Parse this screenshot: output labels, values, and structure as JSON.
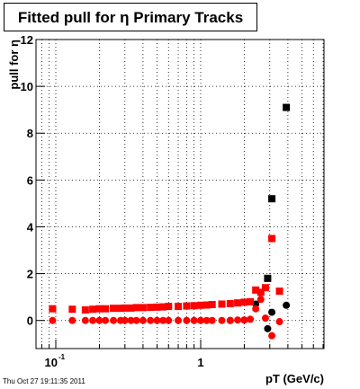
{
  "chart_data": {
    "type": "scatter",
    "title": "Fitted pull for η  Primary Tracks",
    "x_label": "pT (GeV/c)",
    "y_label": "pull for η",
    "timestamp": "Thu Oct 27 19:11:35 2011",
    "x_log": true,
    "grid": true,
    "xlim": [
      0.073,
      7.1
    ],
    "ylim": [
      -1.2,
      12
    ],
    "xticks": [
      {
        "value": 0.1,
        "label": "10",
        "exponent": "-1"
      },
      1
    ],
    "xminor_ticks": [
      0.08,
      0.09,
      0.2,
      0.3,
      0.4,
      0.5,
      0.6,
      0.7,
      0.8,
      0.9,
      2,
      3,
      4,
      5,
      6,
      7
    ],
    "yticks": [
      0,
      2,
      4,
      6,
      8,
      10,
      12
    ],
    "series": [
      {
        "color": "#000000",
        "marker": "circle",
        "x": [
          1.6,
          2.0,
          2.4,
          2.9,
          3.1,
          3.9
        ],
        "values": [
          0,
          0.02,
          0.7,
          -0.35,
          0.35,
          0.65
        ]
      },
      {
        "color": "#000000",
        "marker": "square",
        "x": [
          2.9,
          3.1,
          3.9
        ],
        "values": [
          1.8,
          5.2,
          9.1
        ]
      },
      {
        "color": "#ff0000",
        "marker": "circle",
        "x": [
          0.095,
          0.13,
          0.16,
          0.18,
          0.2,
          0.22,
          0.25,
          0.28,
          0.3,
          0.33,
          0.36,
          0.4,
          0.45,
          0.5,
          0.55,
          0.6,
          0.7,
          0.8,
          0.9,
          1.0,
          1.1,
          1.2,
          1.4,
          1.6,
          1.8,
          2.0,
          2.2,
          2.4,
          2.6,
          2.8,
          3.1,
          3.5
        ],
        "values": [
          0,
          0,
          0,
          0,
          0,
          0,
          0,
          0,
          0,
          0,
          0,
          0,
          0,
          0,
          0,
          0,
          0,
          0,
          0,
          0,
          0,
          0,
          0,
          0,
          0.02,
          0.02,
          0.05,
          0.5,
          0.9,
          0.1,
          -0.65,
          -0.05
        ]
      },
      {
        "color": "#ff0000",
        "marker": "square",
        "x": [
          0.095,
          0.13,
          0.16,
          0.18,
          0.2,
          0.22,
          0.25,
          0.28,
          0.3,
          0.33,
          0.36,
          0.4,
          0.45,
          0.5,
          0.55,
          0.6,
          0.7,
          0.8,
          0.9,
          1.0,
          1.1,
          1.2,
          1.4,
          1.6,
          1.8,
          2.0,
          2.2,
          2.4,
          2.6,
          2.8,
          3.1,
          3.5
        ],
        "values": [
          0.5,
          0.48,
          0.45,
          0.48,
          0.5,
          0.5,
          0.52,
          0.52,
          0.53,
          0.53,
          0.55,
          0.55,
          0.56,
          0.57,
          0.58,
          0.6,
          0.6,
          0.62,
          0.63,
          0.65,
          0.66,
          0.68,
          0.7,
          0.72,
          0.75,
          0.78,
          0.8,
          1.3,
          1.2,
          1.4,
          3.5,
          1.25
        ]
      }
    ]
  }
}
